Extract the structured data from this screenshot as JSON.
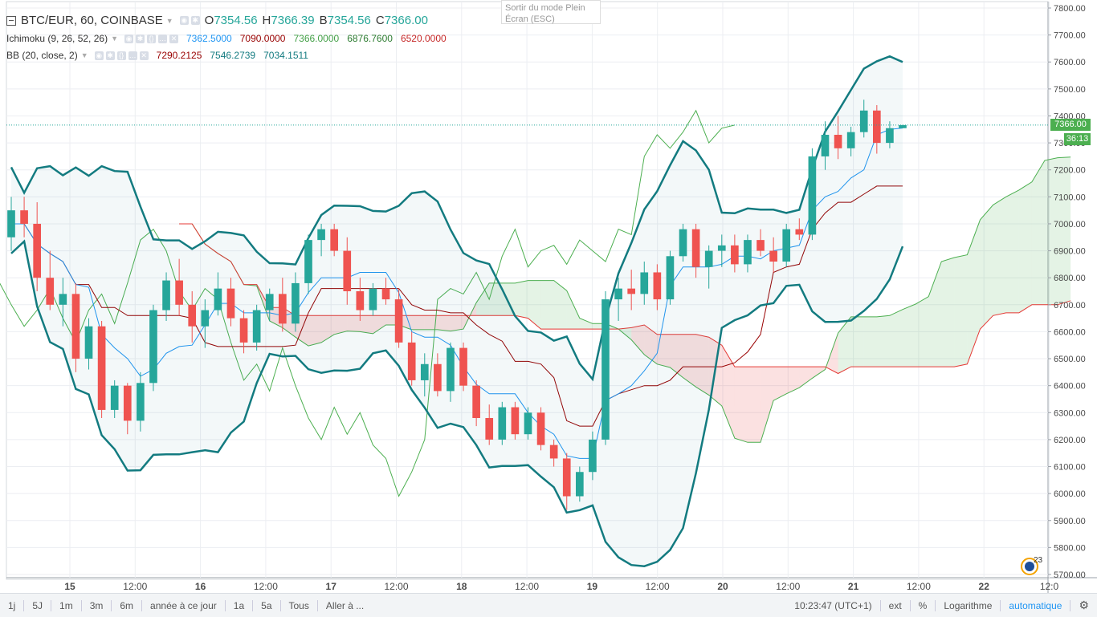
{
  "legend": {
    "symbol": "BTC/EUR, 60, COINBASE",
    "o_label": "O",
    "o_value": "7354.56",
    "h_label": "H",
    "h_value": "7366.39",
    "b_label": "B",
    "b_value": "7354.56",
    "c_label": "C",
    "c_value": "7366.00",
    "ichimoku_label": "Ichimoku (9, 26, 52, 26)",
    "ichimoku_values": [
      "7362.5000",
      "7090.0000",
      "7366.0000",
      "6876.7600",
      "6520.0000"
    ],
    "bb_label": "BB (20, close, 2)",
    "bb_values": [
      "7290.2125",
      "7546.2739",
      "7034.1511"
    ]
  },
  "fullscreen_tip": [
    "Sortir du mode Plein",
    "Écran (ESC)"
  ],
  "price_tag": "7366.00",
  "countdown_tag": "36:13",
  "logo_badge": "23",
  "toolbar": {
    "ranges": [
      "1j",
      "5J",
      "1m",
      "3m",
      "6m",
      "année à ce jour",
      "1a",
      "5a",
      "Tous",
      "Aller à ..."
    ],
    "clock": "10:23:47 (UTC+1)",
    "ext": "ext",
    "percent": "%",
    "log": "Logarithme",
    "auto": "automatique",
    "settings_icon": "gear-icon"
  },
  "colors": {
    "up": "#26a69a",
    "down": "#ef5350",
    "ichimoku_conv": "#2196f3",
    "ichimoku_base": "#990000",
    "ichimoku_lagging": "#4caf50",
    "span_a": "#4caf50",
    "span_b": "#e53935",
    "bb_basis": "#1e88e5",
    "bb_band": "#137b80"
  },
  "chart_data": {
    "type": "candlestick",
    "y_axis_ticks": [
      5700,
      5800,
      5900,
      6000,
      6100,
      6200,
      6300,
      6400,
      6500,
      6600,
      6700,
      6800,
      6900,
      7000,
      7100,
      7200,
      7300,
      7400,
      7500,
      7600,
      7700,
      7800
    ],
    "y_axis_labels": [
      "5700.00",
      "5800.00",
      "5900.00",
      "6000.00",
      "6100.00",
      "6200.00",
      "6300.00",
      "6400.00",
      "6500.00",
      "6600.00",
      "6700.00",
      "6800.00",
      "6900.00",
      "7000.00",
      "7100.00",
      "7200.00",
      "7300.00",
      "7400.00",
      "7500.00",
      "7600.00",
      "7700.00",
      "7800.00"
    ],
    "x_axis_labels": [
      "15",
      "12:00",
      "16",
      "12:00",
      "17",
      "12:00",
      "18",
      "12:00",
      "19",
      "12:00",
      "20",
      "12:00",
      "21",
      "12:00",
      "22",
      "12:0"
    ],
    "candles": [
      {
        "o": 6950,
        "h": 7100,
        "l": 6900,
        "c": 7050
      },
      {
        "o": 7050,
        "h": 7100,
        "l": 6950,
        "c": 7000
      },
      {
        "o": 7000,
        "h": 7080,
        "l": 6750,
        "c": 6800
      },
      {
        "o": 6800,
        "h": 6900,
        "l": 6680,
        "c": 6700
      },
      {
        "o": 6700,
        "h": 6800,
        "l": 6620,
        "c": 6740
      },
      {
        "o": 6740,
        "h": 6780,
        "l": 6450,
        "c": 6500
      },
      {
        "o": 6500,
        "h": 6650,
        "l": 6460,
        "c": 6620
      },
      {
        "o": 6620,
        "h": 6640,
        "l": 6280,
        "c": 6310
      },
      {
        "o": 6310,
        "h": 6420,
        "l": 6280,
        "c": 6400
      },
      {
        "o": 6400,
        "h": 6410,
        "l": 6220,
        "c": 6270
      },
      {
        "o": 6270,
        "h": 6450,
        "l": 6230,
        "c": 6410
      },
      {
        "o": 6410,
        "h": 6700,
        "l": 6380,
        "c": 6680
      },
      {
        "o": 6680,
        "h": 6820,
        "l": 6640,
        "c": 6790
      },
      {
        "o": 6790,
        "h": 6870,
        "l": 6660,
        "c": 6700
      },
      {
        "o": 6700,
        "h": 6750,
        "l": 6560,
        "c": 6620
      },
      {
        "o": 6620,
        "h": 6720,
        "l": 6540,
        "c": 6680
      },
      {
        "o": 6680,
        "h": 6820,
        "l": 6660,
        "c": 6760
      },
      {
        "o": 6760,
        "h": 6800,
        "l": 6620,
        "c": 6650
      },
      {
        "o": 6650,
        "h": 6680,
        "l": 6520,
        "c": 6560
      },
      {
        "o": 6560,
        "h": 6700,
        "l": 6530,
        "c": 6680
      },
      {
        "o": 6680,
        "h": 6760,
        "l": 6640,
        "c": 6740
      },
      {
        "o": 6740,
        "h": 6800,
        "l": 6600,
        "c": 6630
      },
      {
        "o": 6630,
        "h": 6820,
        "l": 6600,
        "c": 6780
      },
      {
        "o": 6780,
        "h": 6960,
        "l": 6740,
        "c": 6940
      },
      {
        "o": 6940,
        "h": 7000,
        "l": 6880,
        "c": 6980
      },
      {
        "o": 6980,
        "h": 7000,
        "l": 6880,
        "c": 6900
      },
      {
        "o": 6900,
        "h": 6950,
        "l": 6700,
        "c": 6750
      },
      {
        "o": 6750,
        "h": 6800,
        "l": 6640,
        "c": 6680
      },
      {
        "o": 6680,
        "h": 6780,
        "l": 6660,
        "c": 6760
      },
      {
        "o": 6760,
        "h": 6800,
        "l": 6700,
        "c": 6720
      },
      {
        "o": 6720,
        "h": 6760,
        "l": 6540,
        "c": 6560
      },
      {
        "o": 6560,
        "h": 6600,
        "l": 6400,
        "c": 6420
      },
      {
        "o": 6420,
        "h": 6520,
        "l": 6360,
        "c": 6480
      },
      {
        "o": 6480,
        "h": 6520,
        "l": 6360,
        "c": 6380
      },
      {
        "o": 6380,
        "h": 6560,
        "l": 6340,
        "c": 6540
      },
      {
        "o": 6540,
        "h": 6560,
        "l": 6380,
        "c": 6400
      },
      {
        "o": 6400,
        "h": 6420,
        "l": 6250,
        "c": 6280
      },
      {
        "o": 6280,
        "h": 6330,
        "l": 6180,
        "c": 6200
      },
      {
        "o": 6200,
        "h": 6340,
        "l": 6180,
        "c": 6320
      },
      {
        "o": 6320,
        "h": 6340,
        "l": 6200,
        "c": 6220
      },
      {
        "o": 6220,
        "h": 6320,
        "l": 6200,
        "c": 6300
      },
      {
        "o": 6300,
        "h": 6320,
        "l": 6160,
        "c": 6180
      },
      {
        "o": 6180,
        "h": 6200,
        "l": 6100,
        "c": 6130
      },
      {
        "o": 6130,
        "h": 6150,
        "l": 5940,
        "c": 5990
      },
      {
        "o": 5990,
        "h": 6100,
        "l": 5970,
        "c": 6080
      },
      {
        "o": 6080,
        "h": 6230,
        "l": 6050,
        "c": 6200
      },
      {
        "o": 6200,
        "h": 6750,
        "l": 6180,
        "c": 6720
      },
      {
        "o": 6720,
        "h": 6800,
        "l": 6640,
        "c": 6760
      },
      {
        "o": 6760,
        "h": 6830,
        "l": 6680,
        "c": 6740
      },
      {
        "o": 6740,
        "h": 6860,
        "l": 6700,
        "c": 6820
      },
      {
        "o": 6820,
        "h": 6850,
        "l": 6680,
        "c": 6720
      },
      {
        "o": 6720,
        "h": 6900,
        "l": 6700,
        "c": 6880
      },
      {
        "o": 6880,
        "h": 7000,
        "l": 6860,
        "c": 6980
      },
      {
        "o": 6980,
        "h": 7000,
        "l": 6800,
        "c": 6840
      },
      {
        "o": 6840,
        "h": 6920,
        "l": 6760,
        "c": 6900
      },
      {
        "o": 6900,
        "h": 6960,
        "l": 6840,
        "c": 6920
      },
      {
        "o": 6920,
        "h": 6960,
        "l": 6820,
        "c": 6850
      },
      {
        "o": 6850,
        "h": 6960,
        "l": 6820,
        "c": 6940
      },
      {
        "o": 6940,
        "h": 6980,
        "l": 6880,
        "c": 6900
      },
      {
        "o": 6900,
        "h": 6950,
        "l": 6820,
        "c": 6860
      },
      {
        "o": 6860,
        "h": 7000,
        "l": 6840,
        "c": 6980
      },
      {
        "o": 6980,
        "h": 7020,
        "l": 6940,
        "c": 6960
      },
      {
        "o": 6960,
        "h": 7280,
        "l": 6940,
        "c": 7250
      },
      {
        "o": 7250,
        "h": 7380,
        "l": 7200,
        "c": 7330
      },
      {
        "o": 7330,
        "h": 7400,
        "l": 7240,
        "c": 7280
      },
      {
        "o": 7280,
        "h": 7360,
        "l": 7250,
        "c": 7340
      },
      {
        "o": 7340,
        "h": 7460,
        "l": 7320,
        "c": 7420
      },
      {
        "o": 7420,
        "h": 7440,
        "l": 7260,
        "c": 7300
      },
      {
        "o": 7300,
        "h": 7380,
        "l": 7280,
        "c": 7354.56
      },
      {
        "o": 7354.56,
        "h": 7366.39,
        "l": 7354.56,
        "c": 7366
      }
    ],
    "current_price": 7366.0
  }
}
